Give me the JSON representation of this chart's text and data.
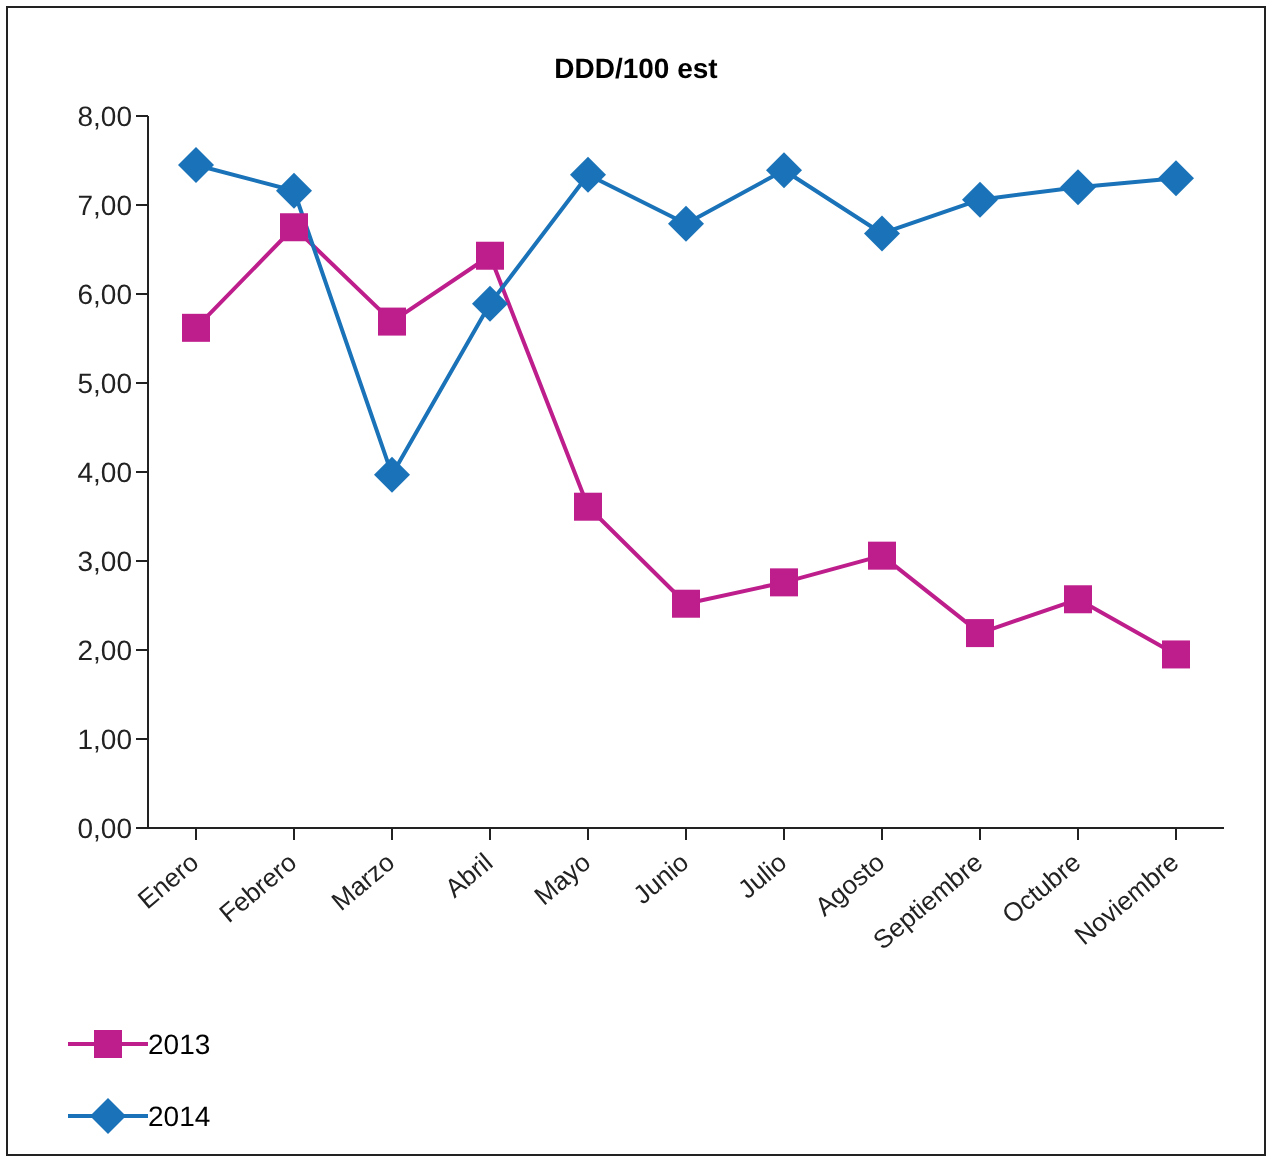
{
  "chart_data": {
    "type": "line",
    "title": "DDD/100 est",
    "categories": [
      "Enero",
      "Febrero",
      "Marzo",
      "Abril",
      "Mayo",
      "Junio",
      "Julio",
      "Agosto",
      "Septiembre",
      "Octubre",
      "Noviembre"
    ],
    "series": [
      {
        "name": "2013",
        "color": "#be1e8c",
        "marker": "square",
        "values": [
          5.62,
          6.75,
          5.69,
          6.43,
          3.61,
          2.52,
          2.76,
          3.06,
          2.19,
          2.57,
          1.95
        ]
      },
      {
        "name": "2014",
        "color": "#1a73b8",
        "marker": "diamond",
        "values": [
          7.45,
          7.16,
          3.97,
          5.89,
          7.34,
          6.79,
          7.39,
          6.68,
          7.06,
          7.2,
          7.3
        ]
      }
    ],
    "ylim": [
      0,
      8
    ],
    "yticks": [
      {
        "value": 0,
        "label": "0,00"
      },
      {
        "value": 1,
        "label": "1,00"
      },
      {
        "value": 2,
        "label": "2,00"
      },
      {
        "value": 3,
        "label": "3,00"
      },
      {
        "value": 4,
        "label": "4,00"
      },
      {
        "value": 5,
        "label": "5,00"
      },
      {
        "value": 6,
        "label": "6,00"
      },
      {
        "value": 7,
        "label": "7,00"
      },
      {
        "value": 8,
        "label": "8,00"
      }
    ],
    "grid": false,
    "legend": "bottom left",
    "line_style": "solid"
  }
}
